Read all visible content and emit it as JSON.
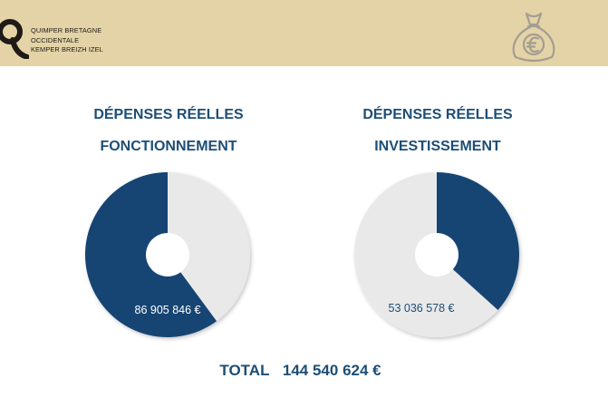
{
  "header": {
    "logo_lines": [
      "QUIMPER BRETAGNE",
      "OCCIDENTALE",
      "KEMPER BREIZH IZEL"
    ],
    "icon": "money-bag-euro-icon",
    "colors": {
      "band": "#e3d3a6",
      "icon": "#a39d91"
    }
  },
  "chart_data": [
    {
      "type": "pie",
      "title_lines": [
        "DÉPENSES RÉELLES",
        "FONCTIONNEMENT"
      ],
      "value": 86905846,
      "value_label": "86 905 846 €",
      "total": 144540624,
      "colors": {
        "value": "#134473",
        "rest": "#e9e9e9"
      }
    },
    {
      "type": "pie",
      "title_lines": [
        "DÉPENSES RÉELLES",
        "INVESTISSEMENT"
      ],
      "value": 53036578,
      "value_label": "53 036 578 €",
      "total": 144540624,
      "colors": {
        "value": "#134473",
        "rest": "#e9e9e9"
      }
    }
  ],
  "total": {
    "label": "TOTAL",
    "value": "144 540 624 €"
  }
}
